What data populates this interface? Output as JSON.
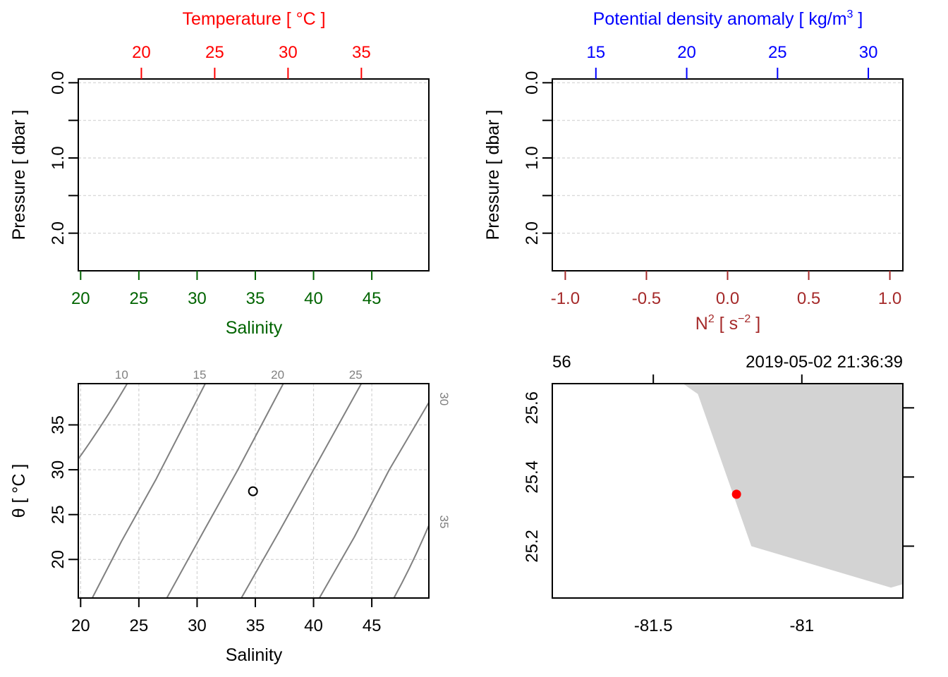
{
  "chart_data": [
    {
      "id": "profile_ts",
      "type": "line",
      "xlabel": "Salinity",
      "x_ticks": [
        "20",
        "25",
        "30",
        "35",
        "40",
        "45"
      ],
      "x_tick_values": [
        20,
        25,
        30,
        35,
        40,
        45
      ],
      "xlim": [
        19.8,
        49.9
      ],
      "x_color": "#006400",
      "top_axis_label": "Temperature [ °C ]",
      "top_ticks": [
        "20",
        "25",
        "30",
        "35"
      ],
      "top_tick_values": [
        20,
        25,
        30,
        35
      ],
      "top_lim": [
        15.7,
        39.6
      ],
      "top_color": "#ff0000",
      "ylabel": "Pressure [ dbar ]",
      "y_ticks": [
        "0.0",
        "1.0",
        "2.0"
      ],
      "y_tick_values": [
        0,
        1,
        2
      ],
      "ylim": [
        2.5,
        -0.05
      ],
      "y_reversed": true,
      "grid_y": [
        0,
        0.5,
        1.0,
        1.5,
        2.0
      ],
      "series": []
    },
    {
      "id": "profile_density",
      "type": "line",
      "xlabel_base": "N",
      "xlabel_sup1": "2",
      "xlabel_mid": " [ s",
      "xlabel_sup2": "−2",
      "xlabel_end": " ]",
      "x_ticks": [
        "-1.0",
        "-0.5",
        "0.0",
        "0.5",
        "1.0"
      ],
      "x_tick_values": [
        -1.0,
        -0.5,
        0.0,
        0.5,
        1.0
      ],
      "xlim": [
        -1.08,
        1.08
      ],
      "x_color": "#a52a2a",
      "top_axis_label_base": "Potential density anomaly [ kg/m",
      "top_axis_label_sup": "3",
      "top_axis_label_end": " ]",
      "top_ticks": [
        "15",
        "20",
        "25",
        "30"
      ],
      "top_tick_values": [
        15,
        20,
        25,
        30
      ],
      "top_lim": [
        12.6,
        31.9
      ],
      "top_color": "#0000ff",
      "ylabel": "Pressure [ dbar ]",
      "y_ticks": [
        "0.0",
        "1.0",
        "2.0"
      ],
      "y_tick_values": [
        0,
        1,
        2
      ],
      "ylim": [
        2.5,
        -0.05
      ],
      "y_reversed": true,
      "grid_y": [
        0,
        0.5,
        1.0,
        1.5,
        2.0
      ],
      "series": []
    },
    {
      "id": "ts_diagram",
      "type": "scatter",
      "xlabel": "Salinity",
      "x_ticks": [
        "20",
        "25",
        "30",
        "35",
        "40",
        "45"
      ],
      "x_tick_values": [
        20,
        25,
        30,
        35,
        40,
        45
      ],
      "xlim": [
        19.8,
        49.9
      ],
      "ylabel": "θ [ °C ]",
      "y_ticks": [
        "20",
        "25",
        "30",
        "35"
      ],
      "y_tick_values": [
        20,
        25,
        30,
        35
      ],
      "ylim": [
        15.7,
        39.6
      ],
      "grid": true,
      "isopycnals": [
        {
          "label": "10",
          "points": [
            [
              19.8,
              31.2
            ],
            [
              22.0,
              35.2
            ],
            [
              24.0,
              39.6
            ]
          ]
        },
        {
          "label": "15",
          "points": [
            [
              21.0,
              15.7
            ],
            [
              23.5,
              22.0
            ],
            [
              26.5,
              29.0
            ],
            [
              30.7,
              39.6
            ]
          ]
        },
        {
          "label": "20",
          "points": [
            [
              27.4,
              15.7
            ],
            [
              30.5,
              23.0
            ],
            [
              33.5,
              30.0
            ],
            [
              37.4,
              39.6
            ]
          ]
        },
        {
          "label": "25",
          "points": [
            [
              33.8,
              15.7
            ],
            [
              37.0,
              23.0
            ],
            [
              40.0,
              30.0
            ],
            [
              44.1,
              39.6
            ]
          ]
        },
        {
          "label": "30",
          "points": [
            [
              40.5,
              15.7
            ],
            [
              43.5,
              22.5
            ],
            [
              46.5,
              30.0
            ],
            [
              49.9,
              37.5
            ]
          ]
        },
        {
          "label": "35",
          "points": [
            [
              46.9,
              15.7
            ],
            [
              48.5,
              19.5
            ],
            [
              49.9,
              23.8
            ]
          ]
        }
      ],
      "points": [
        {
          "x": 34.8,
          "y": 27.6
        }
      ]
    },
    {
      "id": "station_map",
      "type": "scatter",
      "top_left_text": "56",
      "top_right_text": "2019-05-02 21:36:39",
      "x_ticks": [
        "-81.5",
        "-81"
      ],
      "x_tick_values": [
        -81.5,
        -81.0
      ],
      "xlim": [
        -81.84,
        -80.66
      ],
      "y_ticks": [
        "25.2",
        "25.4",
        "25.6"
      ],
      "y_tick_values": [
        25.2,
        25.4,
        25.6
      ],
      "ylim": [
        25.05,
        25.67
      ],
      "land_color": "#d3d3d3",
      "land_polygon": [
        [
          -81.4,
          25.67
        ],
        [
          -81.35,
          25.64
        ],
        [
          -81.17,
          25.2
        ],
        [
          -80.7,
          25.08
        ],
        [
          -80.66,
          25.09
        ],
        [
          -80.66,
          25.67
        ]
      ],
      "station": {
        "lon": -81.22,
        "lat": 25.35,
        "color": "#ff0000"
      }
    }
  ]
}
